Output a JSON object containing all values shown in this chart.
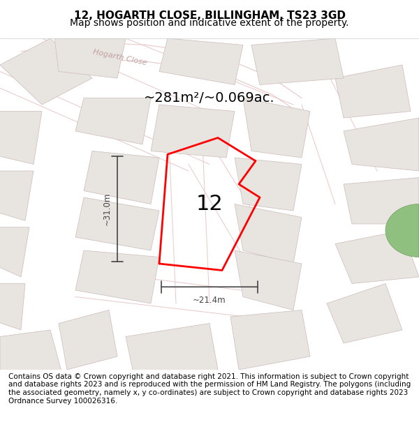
{
  "title": "12, HOGARTH CLOSE, BILLINGHAM, TS23 3GD",
  "subtitle": "Map shows position and indicative extent of the property.",
  "area_text": "~281m²/~0.069ac.",
  "number_label": "12",
  "dim_vertical": "~31.0m",
  "dim_horizontal": "~21.4m",
  "road_label": "Hogarth Close",
  "footer": "Contains OS data © Crown copyright and database right 2021. This information is subject to Crown copyright and database rights 2023 and is reproduced with the permission of HM Land Registry. The polygons (including the associated geometry, namely x, y co-ordinates) are subject to Crown copyright and database rights 2023 Ordnance Survey 100026316.",
  "bg_color": "#f5f0ee",
  "map_bg": "#f0ebe8",
  "building_fill": "#e8e4e0",
  "building_edge": "#ccbbbb",
  "road_color": "#e8c8c8",
  "plot_color": "red",
  "title_fontsize": 11,
  "subtitle_fontsize": 10,
  "footer_fontsize": 7.5,
  "road_label_color": "#c0a0a0",
  "dim_color": "#444444",
  "number_fontsize": 22,
  "area_fontsize": 14
}
